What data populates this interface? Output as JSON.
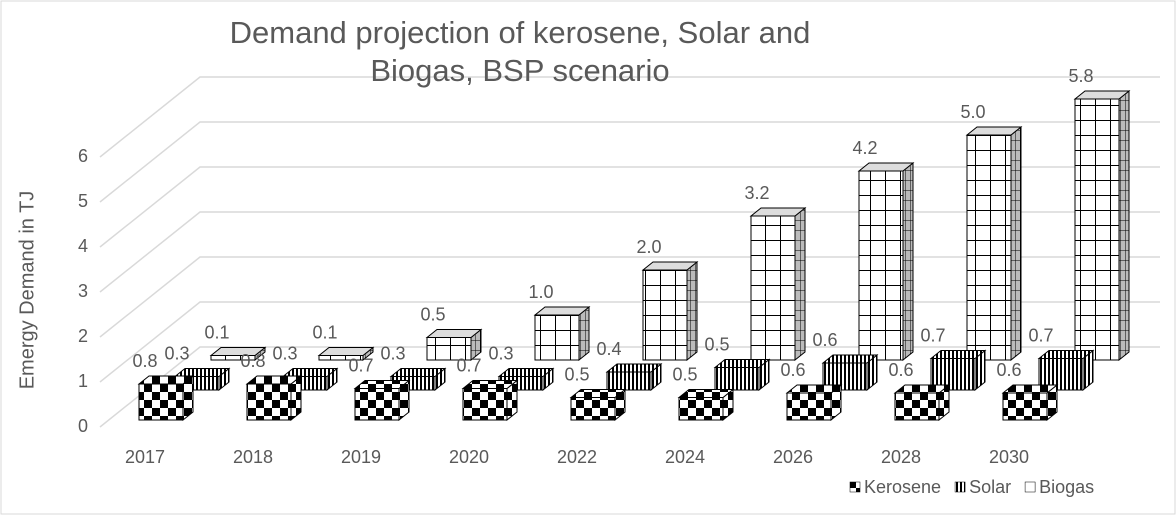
{
  "chart_data": {
    "type": "bar3d",
    "title": "Demand projection of kerosene, Solar and Biogas, BSP scenario",
    "ylabel": "Emergy Demand in TJ",
    "categories": [
      "2017",
      "2018",
      "2019",
      "2020",
      "2022",
      "2024",
      "2026",
      "2028",
      "2030"
    ],
    "series": [
      {
        "name": "Kerosene",
        "color": "#000000",
        "pattern": "checker",
        "values": [
          0.8,
          0.8,
          0.7,
          0.7,
          0.5,
          0.5,
          0.6,
          0.6,
          0.6
        ],
        "value_labels": [
          "0.8",
          "0.8",
          "0.7",
          "0.7",
          "0.5",
          "0.5",
          "0.6",
          "0.6",
          "0.6"
        ]
      },
      {
        "name": "Solar",
        "color": "#000000",
        "pattern": "vlines",
        "values": [
          0.3,
          0.3,
          0.3,
          0.3,
          0.4,
          0.5,
          0.6,
          0.7,
          0.7
        ],
        "value_labels": [
          "0.3",
          "0.3",
          "0.3",
          "0.3",
          "0.4",
          "0.5",
          "0.6",
          "0.7",
          "0.7"
        ]
      },
      {
        "name": "Biogas",
        "color": "#000000",
        "pattern": "grid",
        "values": [
          0.1,
          0.1,
          0.5,
          1.0,
          2.0,
          3.2,
          4.2,
          5.0,
          5.8
        ],
        "value_labels": [
          "0.1",
          "0.1",
          "0.5",
          "1.0",
          "2.0",
          "3.2",
          "4.2",
          "5.0",
          "5.8"
        ]
      }
    ],
    "ylim": [
      0,
      7
    ],
    "yticks": [
      0,
      1,
      2,
      3,
      4,
      5,
      6
    ],
    "grid": true,
    "legend": "bottom-right"
  }
}
